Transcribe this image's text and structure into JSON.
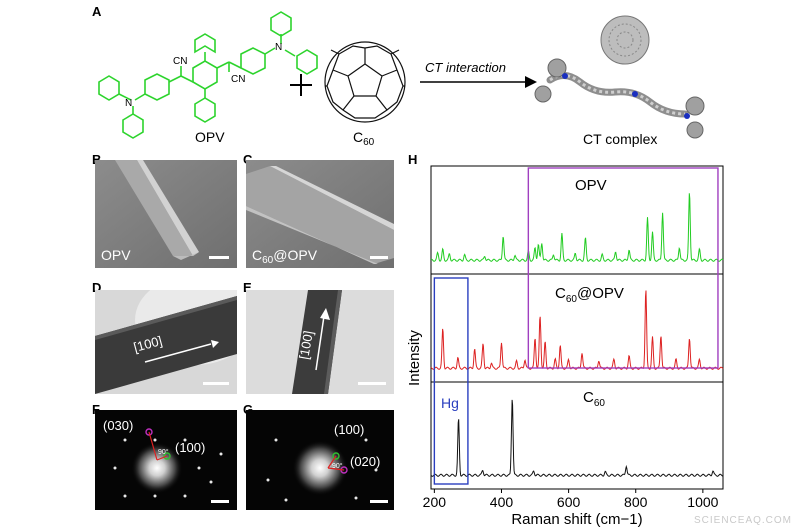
{
  "panels": {
    "A": "A",
    "B": "B",
    "C": "C",
    "D": "D",
    "E": "E",
    "F": "F",
    "G": "G",
    "H": "H"
  },
  "scheme": {
    "opv_label": "OPV",
    "c60_label": "C",
    "c60_sub": "60",
    "arrow_label": "CT interaction",
    "complex_label": "CT complex",
    "cn": "CN",
    "n": "N"
  },
  "sem": {
    "b_label": "OPV",
    "c_label_pre": "C",
    "c_label_sub": "60",
    "c_label_post": "@OPV"
  },
  "tem": {
    "d_label": "[100]",
    "e_label": "[100]"
  },
  "saed": {
    "f_label_030": "(030)",
    "f_label_100": "(100)",
    "f_angle": "90°",
    "g_label_100": "(100)",
    "g_label_020": "(020)",
    "g_angle": "90°"
  },
  "watermark": "SCIENCEAQ.COM",
  "chart_data": {
    "type": "line",
    "xlabel": "Raman shift (cm−1)",
    "ylabel": "Intensity (a.u.)",
    "xlim": [
      190,
      1060
    ],
    "x_ticks": [
      200,
      400,
      600,
      800,
      1000
    ],
    "x_tick_labels": [
      "200",
      "400",
      "600",
      "800",
      "1000"
    ],
    "series": [
      {
        "name": "OPV",
        "color": "#22cc22",
        "peaks": [
          [
            210,
            0.08
          ],
          [
            225,
            0.12
          ],
          [
            245,
            0.07
          ],
          [
            290,
            0.06
          ],
          [
            350,
            0.05
          ],
          [
            405,
            0.28
          ],
          [
            440,
            0.06
          ],
          [
            480,
            0.1
          ],
          [
            500,
            0.14
          ],
          [
            510,
            0.18
          ],
          [
            520,
            0.2
          ],
          [
            555,
            0.07
          ],
          [
            580,
            0.3
          ],
          [
            620,
            0.08
          ],
          [
            650,
            0.25
          ],
          [
            700,
            0.06
          ],
          [
            740,
            0.1
          ],
          [
            780,
            0.12
          ],
          [
            835,
            0.48
          ],
          [
            850,
            0.32
          ],
          [
            880,
            0.55
          ],
          [
            930,
            0.15
          ],
          [
            960,
            0.78
          ],
          [
            990,
            0.12
          ]
        ]
      },
      {
        "name": "C60@OPV",
        "color": "#dd2222",
        "peaks": [
          [
            225,
            0.45
          ],
          [
            270,
            0.12
          ],
          [
            320,
            0.22
          ],
          [
            345,
            0.28
          ],
          [
            370,
            0.06
          ],
          [
            400,
            0.3
          ],
          [
            445,
            0.08
          ],
          [
            470,
            0.1
          ],
          [
            500,
            0.35
          ],
          [
            515,
            0.6
          ],
          [
            530,
            0.3
          ],
          [
            560,
            0.1
          ],
          [
            575,
            0.26
          ],
          [
            600,
            0.1
          ],
          [
            640,
            0.18
          ],
          [
            690,
            0.09
          ],
          [
            735,
            0.1
          ],
          [
            780,
            0.14
          ],
          [
            830,
            0.9
          ],
          [
            850,
            0.35
          ],
          [
            875,
            0.38
          ],
          [
            920,
            0.1
          ],
          [
            960,
            0.35
          ],
          [
            990,
            0.1
          ]
        ]
      },
      {
        "name": "C60",
        "color": "#111111",
        "peaks": [
          [
            272,
            0.65
          ],
          [
            344,
            0.06
          ],
          [
            432,
            0.9
          ],
          [
            496,
            0.05
          ],
          [
            709,
            0.04
          ],
          [
            772,
            0.11
          ],
          [
            1030,
            0.05
          ]
        ]
      }
    ],
    "annotations": [
      {
        "text": "Hg",
        "color": "#2a3fbf"
      }
    ],
    "series_labels": {
      "opv": "OPV",
      "mix_pre": "C",
      "mix_sub": "60",
      "mix_post": "@OPV",
      "c60_pre": "C",
      "c60_sub": "60"
    }
  }
}
